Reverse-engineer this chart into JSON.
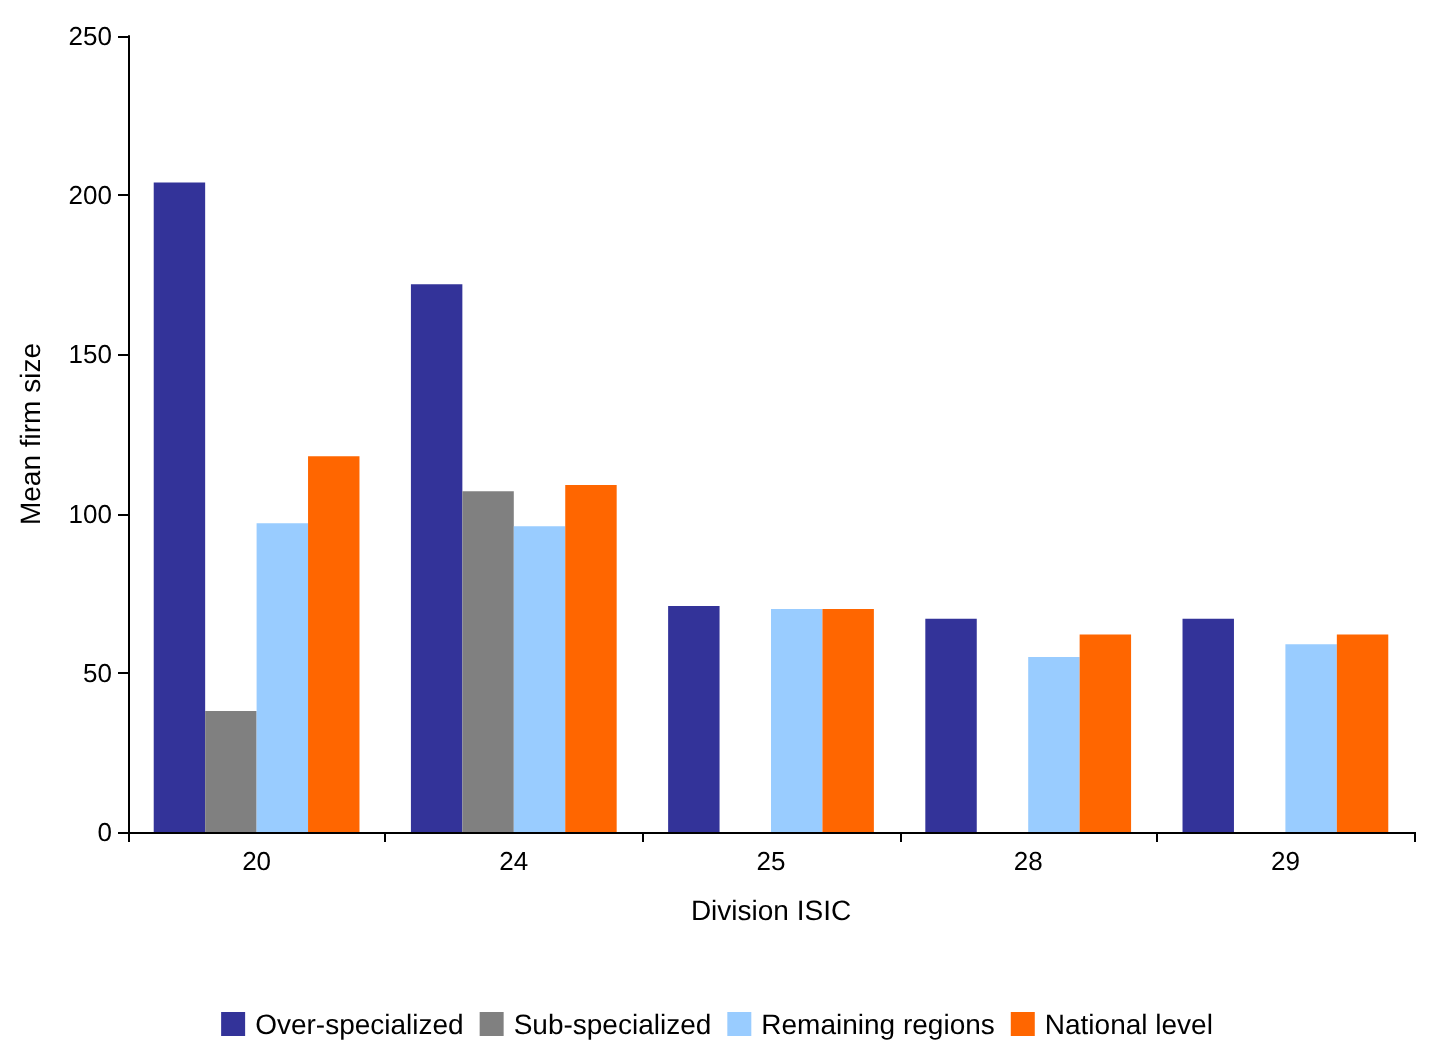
{
  "chart_data": {
    "type": "bar",
    "xlabel": "Division ISIC",
    "ylabel": "Mean firm size",
    "categories": [
      "20",
      "24",
      "25",
      "28",
      "29"
    ],
    "series": [
      {
        "name": "Over-specialized",
        "color": "#333399",
        "values": [
          204,
          172,
          71,
          67,
          67
        ]
      },
      {
        "name": "Sub-specialized",
        "color": "#808080",
        "values": [
          38,
          107,
          null,
          null,
          null
        ]
      },
      {
        "name": "Remaining regions",
        "color": "#99ccff",
        "values": [
          97,
          96,
          70,
          55,
          59
        ]
      },
      {
        "name": "National level",
        "color": "#ff6600",
        "values": [
          118,
          109,
          70,
          62,
          62
        ]
      }
    ],
    "ylim": [
      0,
      250
    ],
    "yticks": [
      0,
      50,
      100,
      150,
      200,
      250
    ],
    "grid": false,
    "legend": "bottom"
  }
}
